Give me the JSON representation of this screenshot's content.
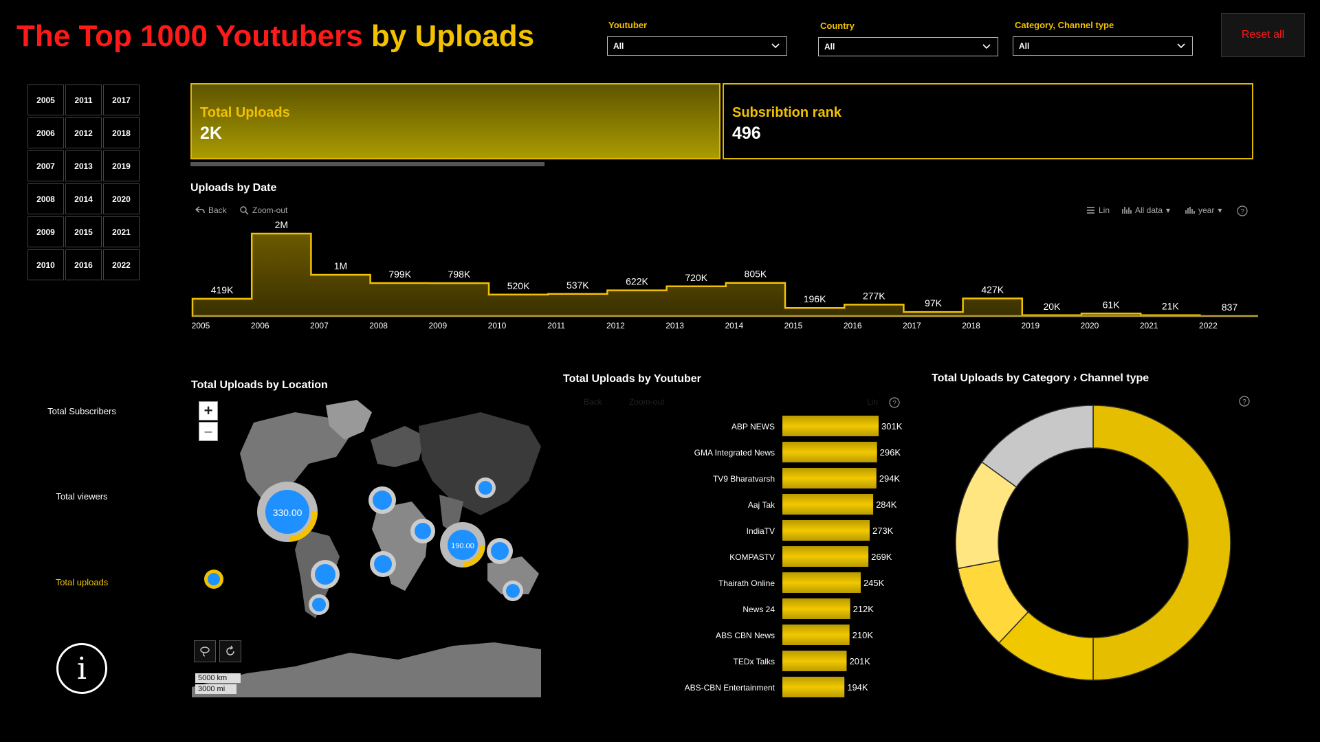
{
  "title": {
    "part1": "The Top 1000 Youtubers ",
    "part2": "by Uploads"
  },
  "filters": [
    {
      "label": "Youtuber",
      "value": "All"
    },
    {
      "label": "Country",
      "value": "All"
    },
    {
      "label": "Category, Channel type",
      "value": "All"
    }
  ],
  "reset_label": "Reset all",
  "years": [
    "2005",
    "2011",
    "2017",
    "2006",
    "2012",
    "2018",
    "2007",
    "2013",
    "2019",
    "2008",
    "2014",
    "2020",
    "2009",
    "2015",
    "2021",
    "2010",
    "2016",
    "2022"
  ],
  "kpis": {
    "uploads": {
      "label": "Total Uploads",
      "value": "2K"
    },
    "rank": {
      "label": "Subsribtion rank",
      "value": "496"
    }
  },
  "uploads_by_date": {
    "title": "Uploads by Date",
    "back": "Back",
    "zoom_out": "Zoom-out",
    "lin": "Lin",
    "all_data": "All data",
    "year": "year"
  },
  "side_metrics": {
    "subscribers": "Total Subscribers",
    "viewers": "Total viewers",
    "uploads": "Total uploads"
  },
  "location": {
    "title": "Total Uploads by Location",
    "zoom_in": "+",
    "zoom_out": "–",
    "scale_km": "5000 km",
    "scale_mi": "3000 mi",
    "bubble_main": "330.00",
    "bubble_second": "190.00"
  },
  "youtuber": {
    "title": "Total Uploads by Youtuber",
    "back": "Back",
    "zoom_out": "Zoom-out",
    "lin": "Lin"
  },
  "category": {
    "title": "Total Uploads by Category › Channel type"
  },
  "colors": {
    "gold": "#f2c200",
    "red": "#ff1a1a",
    "grey": "#bdbdbd"
  },
  "chart_data": [
    {
      "type": "area",
      "title": "Uploads by Date",
      "x": [
        "2005",
        "2006",
        "2007",
        "2008",
        "2009",
        "2010",
        "2011",
        "2012",
        "2013",
        "2014",
        "2015",
        "2016",
        "2017",
        "2018",
        "2019",
        "2020",
        "2021",
        "2022"
      ],
      "values": [
        419000,
        2000000,
        1000000,
        799000,
        798000,
        520000,
        537000,
        622000,
        720000,
        805000,
        196000,
        277000,
        97000,
        427000,
        20000,
        61000,
        21000,
        837
      ],
      "labels": [
        "419K",
        "2M",
        "1M",
        "799K",
        "798K",
        "520K",
        "537K",
        "622K",
        "720K",
        "805K",
        "196K",
        "277K",
        "97K",
        "427K",
        "20K",
        "61K",
        "21K",
        "837"
      ]
    },
    {
      "type": "bar",
      "title": "Total Uploads by Youtuber",
      "categories": [
        "ABP NEWS",
        "GMA Integrated News",
        "TV9 Bharatvarsh",
        "Aaj Tak",
        "IndiaTV",
        "KOMPASTV",
        "Thairath Online",
        "News 24",
        "ABS CBN News",
        "TEDx Talks",
        "ABS-CBN Entertainment"
      ],
      "values": [
        301000,
        296000,
        294000,
        284000,
        273000,
        269000,
        245000,
        212000,
        210000,
        201000,
        194000
      ],
      "labels": [
        "301K",
        "296K",
        "294K",
        "284K",
        "273K",
        "269K",
        "245K",
        "212K",
        "210K",
        "201K",
        "194K"
      ]
    },
    {
      "type": "pie",
      "title": "Total Uploads by Category › Channel type",
      "values": [
        0.5,
        0.12,
        0.1,
        0.13,
        0.15
      ],
      "colors": [
        "#e6be00",
        "#f0c800",
        "#ffd93b",
        "#ffe680",
        "#c8c8c8"
      ]
    }
  ]
}
